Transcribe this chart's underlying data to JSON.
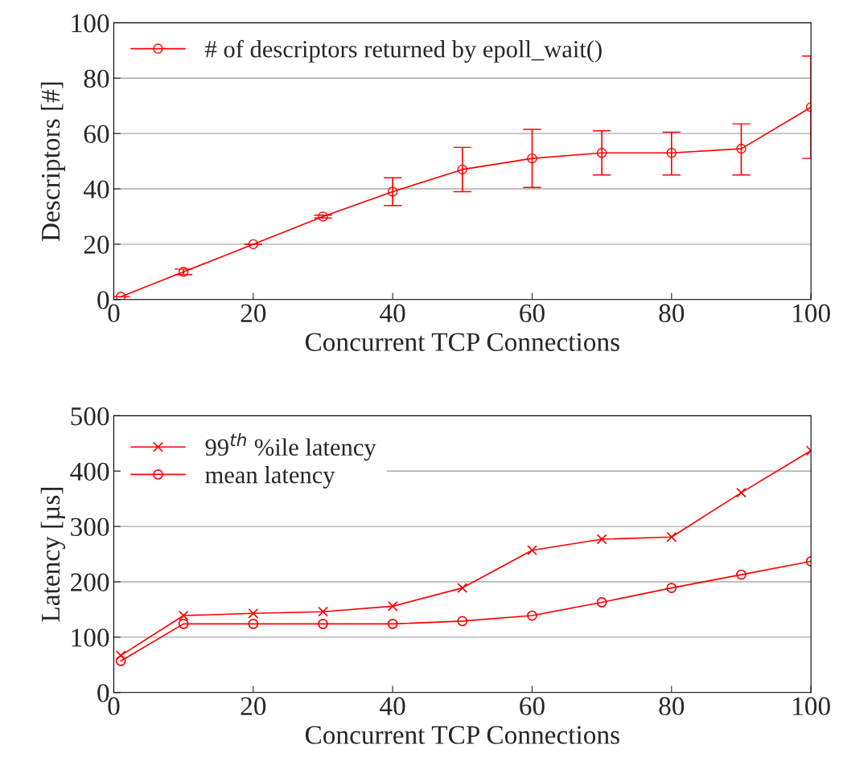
{
  "chart_data": [
    {
      "type": "line",
      "xlabel": "Concurrent TCP Connections",
      "ylabel": "Descriptors [#]",
      "x": [
        1,
        10,
        20,
        30,
        40,
        50,
        60,
        70,
        80,
        90,
        100
      ],
      "series": [
        {
          "name": "# of descriptors returned by epoll_wait()",
          "color": "#ff0000",
          "marker": "circle",
          "values": [
            1,
            10,
            20,
            30,
            39,
            47,
            51,
            53,
            53,
            54.5,
            69.5
          ],
          "errors": [
            null,
            [
              9,
              11
            ],
            null,
            [
              29.5,
              30.5
            ],
            [
              34,
              44
            ],
            [
              39,
              55
            ],
            [
              40.5,
              61.5
            ],
            [
              45,
              61
            ],
            [
              45,
              60.5
            ],
            [
              45,
              63.5
            ],
            [
              51,
              88
            ]
          ]
        }
      ],
      "xlim": [
        0,
        100
      ],
      "xticks": [
        0,
        20,
        40,
        60,
        80,
        100
      ],
      "ylim": [
        0,
        100
      ],
      "yticks": [
        0,
        20,
        40,
        60,
        80,
        100
      ],
      "grid": "y",
      "legend": "top left"
    },
    {
      "type": "line",
      "xlabel": "Concurrent TCP Connections",
      "ylabel": "Latency [µs]",
      "x": [
        1,
        10,
        20,
        30,
        40,
        50,
        60,
        70,
        80,
        90,
        100
      ],
      "series": [
        {
          "name": "99$^{th}$ %ile latency",
          "color": "#ff0000",
          "marker": "cross",
          "values": [
            67,
            139,
            143,
            146,
            156,
            189,
            257,
            277,
            281,
            361,
            437
          ]
        },
        {
          "name": "mean latency",
          "color": "#ff0000",
          "marker": "circle",
          "values": [
            57,
            124,
            124,
            124,
            124,
            129,
            139,
            163,
            189,
            213,
            237
          ]
        }
      ],
      "xlim": [
        0,
        100
      ],
      "xticks": [
        0,
        20,
        40,
        60,
        80,
        100
      ],
      "ylim": [
        0,
        500
      ],
      "yticks": [
        0,
        100,
        200,
        300,
        400,
        500
      ],
      "grid": "y",
      "legend": "top left"
    }
  ]
}
